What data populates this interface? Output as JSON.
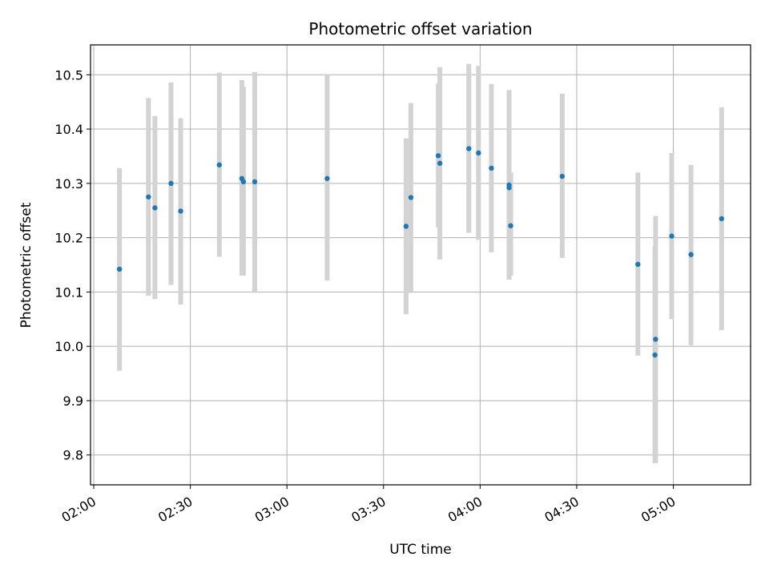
{
  "chart_data": {
    "type": "scatter",
    "title": "Photometric offset variation",
    "xlabel": "UTC time",
    "ylabel": "Photometric offset",
    "x_range_minutes": [
      119,
      324
    ],
    "ylim": [
      9.745,
      10.555
    ],
    "grid": true,
    "x_ticks": [
      {
        "label": "02:00",
        "minutes": 120
      },
      {
        "label": "02:30",
        "minutes": 150
      },
      {
        "label": "03:00",
        "minutes": 180
      },
      {
        "label": "03:30",
        "minutes": 210
      },
      {
        "label": "04:00",
        "minutes": 240
      },
      {
        "label": "04:30",
        "minutes": 270
      },
      {
        "label": "05:00",
        "minutes": 300
      }
    ],
    "y_ticks": [
      "9.8",
      "9.9",
      "10.0",
      "10.1",
      "10.2",
      "10.3",
      "10.4",
      "10.5"
    ],
    "marker_color": "#1f77b4",
    "errorbar_color": "#d3d3d3",
    "points": [
      {
        "t": 128.0,
        "y": 10.142,
        "lo": 9.955,
        "hi": 10.328
      },
      {
        "t": 137.0,
        "y": 10.275,
        "lo": 10.093,
        "hi": 10.457
      },
      {
        "t": 139.0,
        "y": 10.255,
        "lo": 10.087,
        "hi": 10.424
      },
      {
        "t": 144.0,
        "y": 10.3,
        "lo": 10.113,
        "hi": 10.486
      },
      {
        "t": 147.0,
        "y": 10.249,
        "lo": 10.077,
        "hi": 10.42
      },
      {
        "t": 159.0,
        "y": 10.334,
        "lo": 10.165,
        "hi": 10.504
      },
      {
        "t": 166.0,
        "y": 10.309,
        "lo": 10.13,
        "hi": 10.49
      },
      {
        "t": 166.5,
        "y": 10.303,
        "lo": 10.13,
        "hi": 10.478
      },
      {
        "t": 170.0,
        "y": 10.303,
        "lo": 10.1,
        "hi": 10.505
      },
      {
        "t": 192.5,
        "y": 10.309,
        "lo": 10.121,
        "hi": 10.5
      },
      {
        "t": 217.0,
        "y": 10.221,
        "lo": 10.059,
        "hi": 10.383
      },
      {
        "t": 218.5,
        "y": 10.274,
        "lo": 10.101,
        "hi": 10.448
      },
      {
        "t": 227.0,
        "y": 10.351,
        "lo": 10.219,
        "hi": 10.484
      },
      {
        "t": 227.5,
        "y": 10.337,
        "lo": 10.16,
        "hi": 10.514
      },
      {
        "t": 236.5,
        "y": 10.364,
        "lo": 10.209,
        "hi": 10.52
      },
      {
        "t": 239.5,
        "y": 10.356,
        "lo": 10.196,
        "hi": 10.516
      },
      {
        "t": 243.5,
        "y": 10.328,
        "lo": 10.173,
        "hi": 10.483
      },
      {
        "t": 249.0,
        "y": 10.297,
        "lo": 10.123,
        "hi": 10.472
      },
      {
        "t": 249.0,
        "y": 10.292,
        "lo": 10.123,
        "hi": 10.462
      },
      {
        "t": 249.5,
        "y": 10.222,
        "lo": 10.13,
        "hi": 10.32
      },
      {
        "t": 265.5,
        "y": 10.313,
        "lo": 10.163,
        "hi": 10.465
      },
      {
        "t": 289.0,
        "y": 10.151,
        "lo": 9.983,
        "hi": 10.32
      },
      {
        "t": 294.5,
        "y": 10.013,
        "lo": 9.785,
        "hi": 10.24
      },
      {
        "t": 294.3,
        "y": 9.984,
        "lo": 9.785,
        "hi": 10.184
      },
      {
        "t": 299.5,
        "y": 10.203,
        "lo": 10.05,
        "hi": 10.356
      },
      {
        "t": 305.5,
        "y": 10.169,
        "lo": 10.002,
        "hi": 10.334
      },
      {
        "t": 315.0,
        "y": 10.235,
        "lo": 10.03,
        "hi": 10.44
      }
    ]
  }
}
